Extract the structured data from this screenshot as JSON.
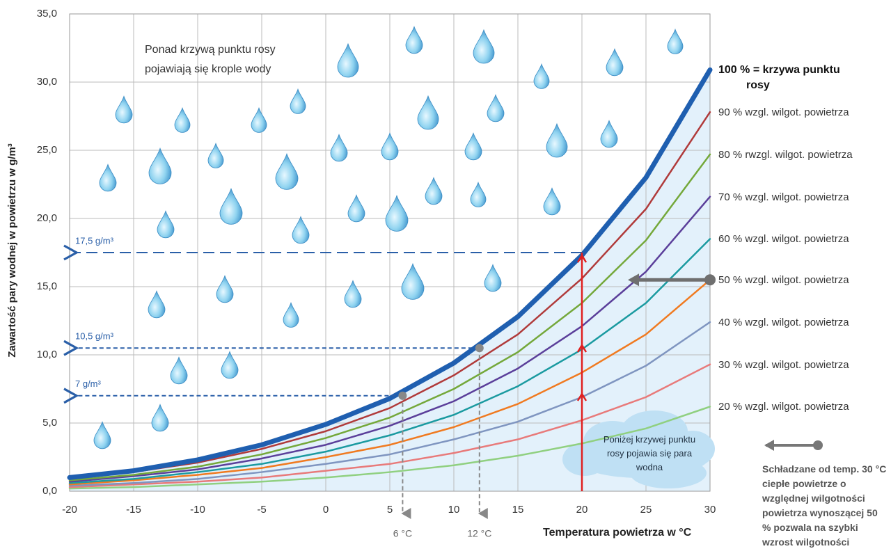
{
  "chart_data": {
    "type": "line",
    "annotation": "Ponad krzywą punktu rosy pojawiają się krople wody",
    "x_label": "Temperatura powietrza w °C",
    "y_label": "Zawartość pary wodnej w powietrzu w g/m³",
    "x": [
      -20,
      -15,
      -10,
      -5,
      0,
      5,
      10,
      15,
      20,
      25,
      30
    ],
    "xlim": [
      -20,
      30
    ],
    "xticks": [
      -20,
      -15,
      -10,
      -5,
      0,
      5,
      10,
      15,
      20,
      25,
      30
    ],
    "ylim": [
      0,
      35
    ],
    "yticks": [
      {
        "value": 0,
        "label": "0,0"
      },
      {
        "value": 5,
        "label": "5,0"
      },
      {
        "value": 10,
        "label": "10,0"
      },
      {
        "value": 15,
        "label": "15,0"
      },
      {
        "value": 20,
        "label": "20,0"
      },
      {
        "value": 25,
        "label": "25,0"
      },
      {
        "value": 30,
        "label": "30,0"
      },
      {
        "value": 35,
        "label": "35,0"
      }
    ],
    "grid": true,
    "series": [
      {
        "name": "100 % = krzywa punktu rosy",
        "color": "#1f5fb0",
        "values": [
          1.0,
          1.5,
          2.3,
          3.4,
          4.9,
          6.8,
          9.4,
          12.8,
          17.3,
          23.0,
          30.9
        ]
      },
      {
        "name": "90 % wzgl. wilgot. powietrza",
        "color": "#b03a3a",
        "values": [
          0.9,
          1.4,
          2.1,
          3.1,
          4.4,
          6.1,
          8.5,
          11.5,
          15.6,
          20.7,
          27.8
        ]
      },
      {
        "name": "80 % rwzgl. wilgot. powietrza",
        "color": "#74a83a",
        "values": [
          0.8,
          1.2,
          1.8,
          2.7,
          3.9,
          5.4,
          7.5,
          10.2,
          13.8,
          18.4,
          24.7
        ]
      },
      {
        "name": "70 % wzgl. wilgot. powietrza",
        "color": "#5b3f9a",
        "values": [
          0.7,
          1.1,
          1.6,
          2.4,
          3.4,
          4.8,
          6.6,
          9.0,
          12.1,
          16.1,
          21.6
        ]
      },
      {
        "name": "60 % wzgl. wilgot. powietrza",
        "color": "#1a9aa0",
        "values": [
          0.6,
          0.9,
          1.4,
          2.0,
          2.9,
          4.1,
          5.6,
          7.7,
          10.4,
          13.8,
          18.5
        ]
      },
      {
        "name": "50 % wzgl. wilgot. powietrza",
        "color": "#f07a20",
        "values": [
          0.5,
          0.8,
          1.2,
          1.7,
          2.5,
          3.4,
          4.7,
          6.4,
          8.7,
          11.5,
          15.5
        ]
      },
      {
        "name": "40 % wzgl. wilgot. powietrza",
        "color": "#7f95c0",
        "values": [
          0.4,
          0.6,
          0.9,
          1.4,
          2.0,
          2.7,
          3.8,
          5.1,
          6.9,
          9.2,
          12.4
        ]
      },
      {
        "name": "30 % wzgl. wilgot. powietrza",
        "color": "#e87a7a",
        "values": [
          0.3,
          0.5,
          0.7,
          1.0,
          1.5,
          2.0,
          2.8,
          3.8,
          5.2,
          6.9,
          9.3
        ]
      },
      {
        "name": "20 % wzgl. wilgot. powietrza",
        "color": "#90d080",
        "values": [
          0.2,
          0.3,
          0.5,
          0.7,
          1.0,
          1.4,
          1.9,
          2.6,
          3.5,
          4.6,
          6.2
        ]
      }
    ],
    "guides": [
      {
        "y": 17.5,
        "y_label": "17,5 g/m³",
        "x": 20
      },
      {
        "y": 10.5,
        "y_label": "10,5 g/m³",
        "x": 12,
        "x_label": "12 °C"
      },
      {
        "y": 7,
        "y_label": "7 g/m³",
        "x": 6,
        "x_label": "6 °C"
      }
    ],
    "cloud_text": "Poniżej krzywej punktu rosy pojawia się para wodna",
    "note": "Schładzane od temp. 30 °C ciepłe powietrze o względnej wilgotności powietrza wynoszącej 50 % pozwala na szybki wzrost wilgotności"
  }
}
